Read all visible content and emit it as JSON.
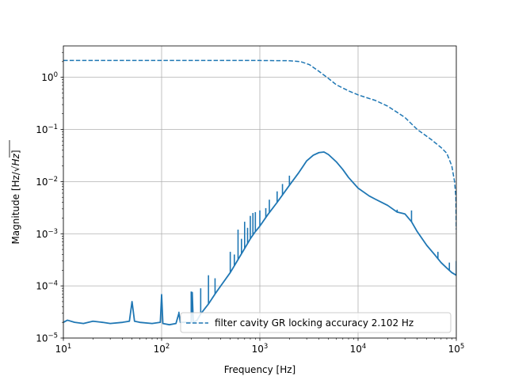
{
  "chart_data": {
    "type": "line",
    "title": "",
    "xlabel": "Frequency [Hz]",
    "ylabel_prefix": "Magnitude [Hz/",
    "ylabel_sqrt": "Hz",
    "ylabel_suffix": "]",
    "xscale": "log",
    "yscale": "log",
    "xlim": [
      10,
      100000
    ],
    "ylim": [
      1e-05,
      4
    ],
    "grid": true,
    "legend_location": "lower right",
    "x_ticks": [
      {
        "base": "10",
        "exp": "1",
        "value": 10
      },
      {
        "base": "10",
        "exp": "2",
        "value": 100
      },
      {
        "base": "10",
        "exp": "3",
        "value": 1000
      },
      {
        "base": "10",
        "exp": "4",
        "value": 10000
      },
      {
        "base": "10",
        "exp": "5",
        "value": 100000
      }
    ],
    "y_ticks": [
      {
        "base": "10",
        "exp": "−5",
        "value": 1e-05
      },
      {
        "base": "10",
        "exp": "−4",
        "value": 0.0001
      },
      {
        "base": "10",
        "exp": "−3",
        "value": 0.001
      },
      {
        "base": "10",
        "exp": "−2",
        "value": 0.01
      },
      {
        "base": "10",
        "exp": "−1",
        "value": 0.1
      },
      {
        "base": "10",
        "exp": "0",
        "value": 1
      }
    ],
    "series": [
      {
        "name": "filter cavity GR locking accuracy 2.102 Hz",
        "style": "dashed",
        "color": "#1f77b4",
        "points": [
          [
            10,
            2.1
          ],
          [
            100,
            2.1
          ],
          [
            1000,
            2.1
          ],
          [
            2000,
            2.08
          ],
          [
            2600,
            2.0
          ],
          [
            3200,
            1.75
          ],
          [
            4000,
            1.3
          ],
          [
            5000,
            0.95
          ],
          [
            6000,
            0.72
          ],
          [
            8000,
            0.55
          ],
          [
            10000,
            0.46
          ],
          [
            15000,
            0.36
          ],
          [
            20000,
            0.28
          ],
          [
            30000,
            0.17
          ],
          [
            40000,
            0.1
          ],
          [
            55000,
            0.065
          ],
          [
            70000,
            0.045
          ],
          [
            80000,
            0.035
          ],
          [
            90000,
            0.02
          ],
          [
            96000,
            0.01
          ],
          [
            99000,
            0.005
          ],
          [
            100000,
            0.0012
          ]
        ]
      },
      {
        "name": "",
        "style": "solid",
        "color": "#1f77b4",
        "points": [
          [
            10,
            2e-05
          ],
          [
            11,
            2.2e-05
          ],
          [
            13,
            2e-05
          ],
          [
            16,
            1.9e-05
          ],
          [
            20,
            2.1e-05
          ],
          [
            25,
            2e-05
          ],
          [
            30,
            1.9e-05
          ],
          [
            40,
            2e-05
          ],
          [
            47,
            2.1e-05
          ],
          [
            50,
            5e-05
          ],
          [
            53,
            2.1e-05
          ],
          [
            60,
            2e-05
          ],
          [
            80,
            1.9e-05
          ],
          [
            97,
            2e-05
          ],
          [
            100,
            6.8e-05
          ],
          [
            103,
            1.9e-05
          ],
          [
            120,
            1.8e-05
          ],
          [
            140,
            1.9e-05
          ],
          [
            150,
            3e-05
          ],
          [
            155,
            2e-05
          ],
          [
            180,
            2e-05
          ],
          [
            200,
            2e-05
          ],
          [
            205,
            7.5e-05
          ],
          [
            210,
            2e-05
          ],
          [
            230,
            2.2e-05
          ],
          [
            250,
            2.9e-05
          ],
          [
            270,
            3.5e-05
          ],
          [
            300,
            4.5e-05
          ],
          [
            350,
            7e-05
          ],
          [
            400,
            0.0001
          ],
          [
            500,
            0.00018
          ],
          [
            600,
            0.00032
          ],
          [
            700,
            0.00052
          ],
          [
            800,
            0.0008
          ],
          [
            900,
            0.0011
          ],
          [
            1000,
            0.0014
          ],
          [
            1200,
            0.0023
          ],
          [
            1500,
            0.004
          ],
          [
            2000,
            0.0085
          ],
          [
            2500,
            0.015
          ],
          [
            3000,
            0.025
          ],
          [
            3500,
            0.032
          ],
          [
            4000,
            0.036
          ],
          [
            4500,
            0.037
          ],
          [
            5000,
            0.033
          ],
          [
            6000,
            0.024
          ],
          [
            7000,
            0.017
          ],
          [
            8000,
            0.012
          ],
          [
            10000,
            0.0075
          ],
          [
            13000,
            0.0053
          ],
          [
            15000,
            0.0046
          ],
          [
            20000,
            0.0035
          ],
          [
            25000,
            0.0026
          ],
          [
            30000,
            0.0024
          ],
          [
            35000,
            0.0017
          ],
          [
            40000,
            0.0011
          ],
          [
            50000,
            0.0006
          ],
          [
            60000,
            0.0004
          ],
          [
            70000,
            0.00028
          ],
          [
            80000,
            0.00022
          ],
          [
            90000,
            0.00018
          ],
          [
            100000,
            0.00016
          ]
        ],
        "spikes": [
          [
            50,
            5e-05
          ],
          [
            100,
            6.8e-05
          ],
          [
            150,
            3.2e-05
          ],
          [
            200,
            7.8e-05
          ],
          [
            250,
            9e-05
          ],
          [
            300,
            0.00016
          ],
          [
            350,
            0.00014
          ],
          [
            500,
            0.00045
          ],
          [
            550,
            0.0004
          ],
          [
            600,
            0.0012
          ],
          [
            650,
            0.0008
          ],
          [
            700,
            0.0017
          ],
          [
            750,
            0.0013
          ],
          [
            800,
            0.0022
          ],
          [
            850,
            0.0025
          ],
          [
            900,
            0.0026
          ],
          [
            1000,
            0.0028
          ],
          [
            1150,
            0.0031
          ],
          [
            1250,
            0.0045
          ],
          [
            1500,
            0.0065
          ],
          [
            1700,
            0.009
          ],
          [
            2000,
            0.013
          ],
          [
            25000,
            0.0029
          ],
          [
            35000,
            0.0028
          ],
          [
            65000,
            0.00045
          ],
          [
            85000,
            0.00028
          ],
          [
            100000,
            0.0003
          ]
        ]
      }
    ]
  }
}
